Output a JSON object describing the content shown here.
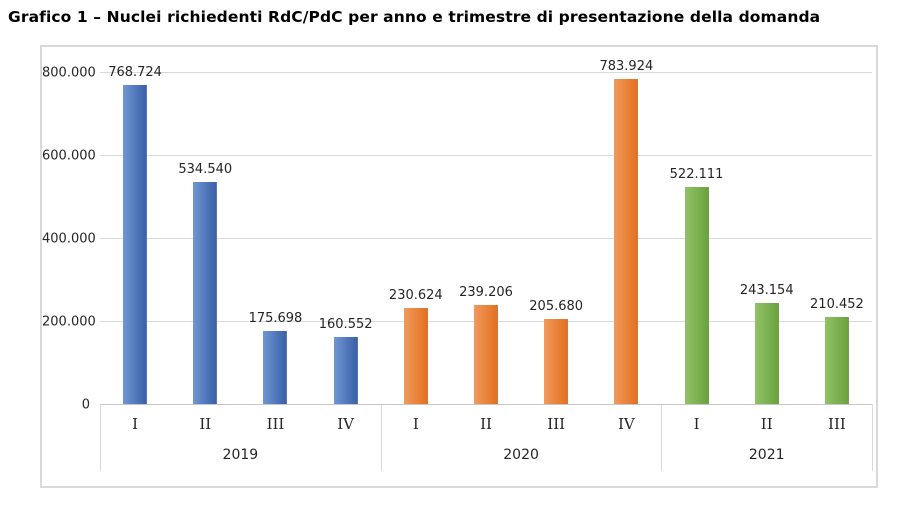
{
  "chart_data": {
    "type": "bar",
    "title": "Grafico 1 – Nuclei richiedenti RdC/PdC per anno e trimestre di presentazione della domanda",
    "xlabel": "",
    "ylabel": "",
    "ylim": [
      0,
      800000
    ],
    "grid": true,
    "legend": "none",
    "y_ticks": [
      {
        "value": 0,
        "label": "0"
      },
      {
        "value": 200000,
        "label": "200.000"
      },
      {
        "value": 400000,
        "label": "400.000"
      },
      {
        "value": 600000,
        "label": "600.000"
      },
      {
        "value": 800000,
        "label": "800.000"
      }
    ],
    "groups": [
      {
        "year": "2019",
        "color_key": "blue",
        "quarters": [
          {
            "label": "I",
            "value": 768724,
            "value_label": "768.724"
          },
          {
            "label": "II",
            "value": 534540,
            "value_label": "534.540"
          },
          {
            "label": "III",
            "value": 175698,
            "value_label": "175.698"
          },
          {
            "label": "IV",
            "value": 160552,
            "value_label": "160.552"
          }
        ]
      },
      {
        "year": "2020",
        "color_key": "orange",
        "quarters": [
          {
            "label": "I",
            "value": 230624,
            "value_label": "230.624"
          },
          {
            "label": "II",
            "value": 239206,
            "value_label": "239.206"
          },
          {
            "label": "III",
            "value": 205680,
            "value_label": "205.680"
          },
          {
            "label": "IV",
            "value": 783924,
            "value_label": "783.924"
          }
        ]
      },
      {
        "year": "2021",
        "color_key": "green",
        "quarters": [
          {
            "label": "I",
            "value": 522111,
            "value_label": "522.111"
          },
          {
            "label": "II",
            "value": 243154,
            "value_label": "243.154"
          },
          {
            "label": "III",
            "value": 210452,
            "value_label": "210.452"
          }
        ]
      }
    ],
    "colors": {
      "blue": {
        "light": "#7096d2",
        "dark": "#3a61a9"
      },
      "orange": {
        "light": "#f09a5e",
        "dark": "#e4701f"
      },
      "green": {
        "light": "#93c169",
        "dark": "#6aa33d"
      },
      "grid": "#d9d9d9",
      "axis": "#c6c6c6",
      "text": "#262626"
    }
  }
}
